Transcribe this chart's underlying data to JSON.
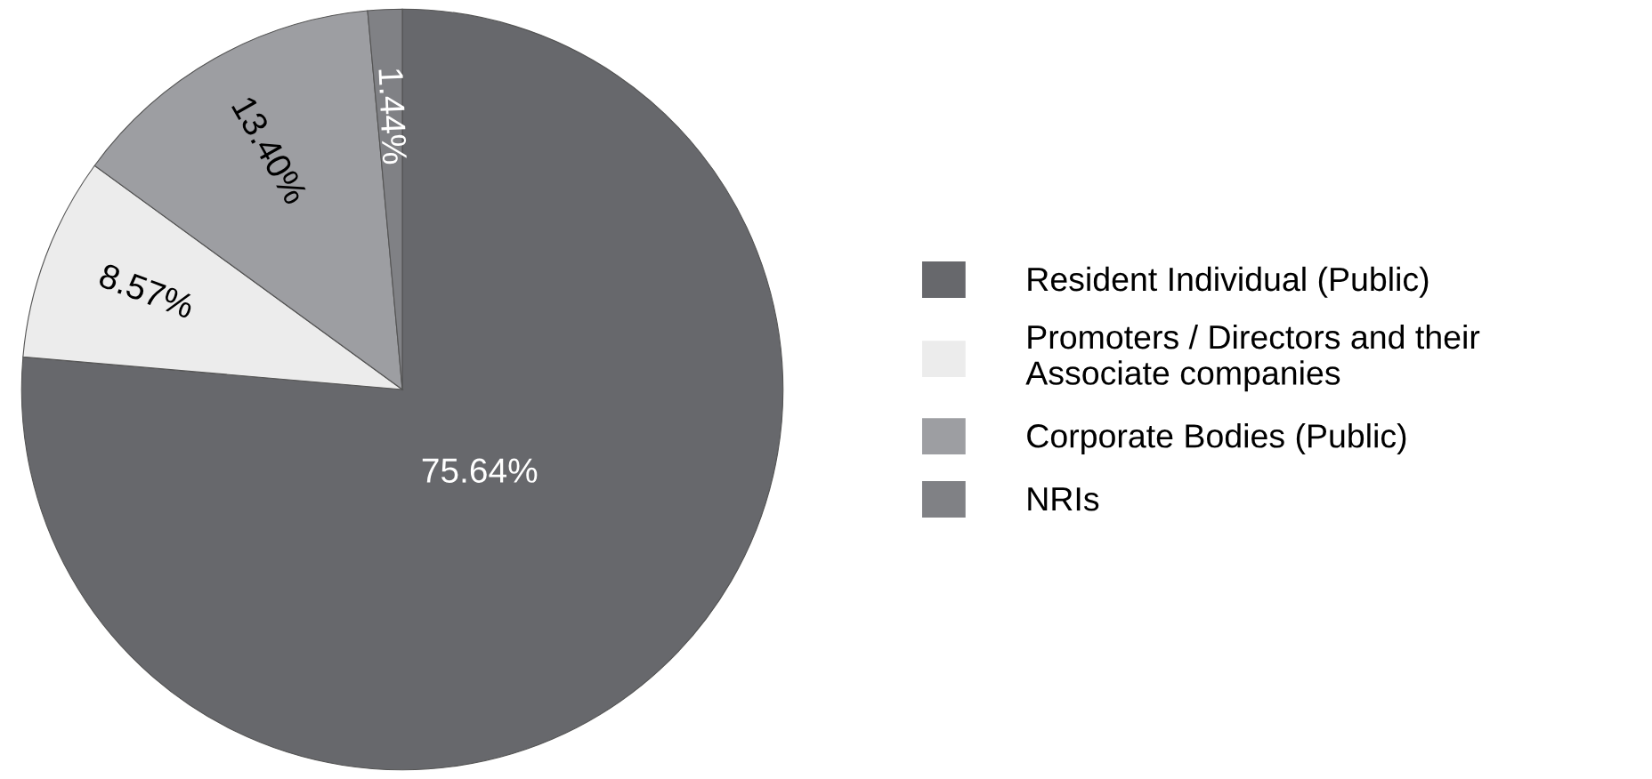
{
  "chart_data": {
    "type": "pie",
    "categories": [
      "Resident Individual (Public)",
      "Promoters / Directors and their\nAssociate companies",
      "Corporate Bodies (Public)",
      "NRIs"
    ],
    "values": [
      75.64,
      8.57,
      13.4,
      1.44
    ],
    "colors": [
      "#67686c",
      "#ececec",
      "#9d9ea2",
      "#808185"
    ],
    "value_labels": [
      "75.64%",
      "8.57%",
      "13.40%",
      "1.44%"
    ],
    "legend": "right"
  }
}
